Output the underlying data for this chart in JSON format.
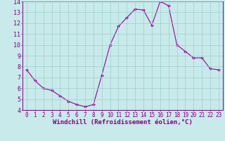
{
  "x": [
    0,
    1,
    2,
    3,
    4,
    5,
    6,
    7,
    8,
    9,
    10,
    11,
    12,
    13,
    14,
    15,
    16,
    17,
    18,
    19,
    20,
    21,
    22,
    23
  ],
  "y": [
    7.7,
    6.7,
    6.0,
    5.8,
    5.3,
    4.8,
    4.5,
    4.3,
    4.5,
    7.2,
    10.0,
    11.7,
    12.5,
    13.3,
    13.2,
    11.8,
    14.0,
    13.6,
    10.0,
    9.4,
    8.8,
    8.8,
    7.8,
    7.7
  ],
  "line_color": "#990099",
  "marker": "D",
  "marker_size": 2.0,
  "bg_color": "#c8eaea",
  "grid_color": "#9ecece",
  "xlabel": "Windchill (Refroidissement éolien,°C)",
  "xlabel_color": "#800080",
  "xlabel_fontsize": 6.5,
  "xtick_fontsize": 5.5,
  "ytick_fontsize": 6.0,
  "xlim": [
    -0.5,
    23.5
  ],
  "ylim": [
    4,
    14
  ],
  "yticks": [
    4,
    5,
    6,
    7,
    8,
    9,
    10,
    11,
    12,
    13,
    14
  ],
  "xticks": [
    0,
    1,
    2,
    3,
    4,
    5,
    6,
    7,
    8,
    9,
    10,
    11,
    12,
    13,
    14,
    15,
    16,
    17,
    18,
    19,
    20,
    21,
    22,
    23
  ],
  "tick_color": "#800080",
  "axis_color": "#800080",
  "line_width": 0.8
}
